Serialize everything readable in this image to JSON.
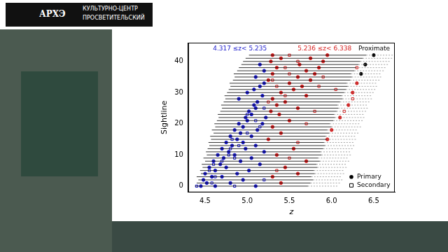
{
  "header": {
    "logo": "АРХЭ",
    "line1": "КУЛЬТУРНО-ЦЕНТР",
    "line2": "ПРОСВЕТИТЕЛЬСКИЙ"
  },
  "chart_data": {
    "type": "scatter",
    "x_label": "z",
    "y_label": "Sightline",
    "xlim": [
      4.3,
      6.75
    ],
    "xticks": [
      4.5,
      {
        "value": 5,
        "label": "5.0"
      },
      5.5,
      {
        "value": 6,
        "label": "6.0"
      },
      6.5
    ],
    "ylim": [
      -2,
      46
    ],
    "yticks": [
      0,
      10,
      20,
      30,
      40
    ],
    "grid": false,
    "legend": "lower right",
    "ranges": [
      {
        "text": "4.317 ≤z< 5.235",
        "min": 4.317,
        "max": 5.235,
        "color": "#1a1acc"
      },
      {
        "text": "5.236 ≤z< 6.338",
        "min": 5.236,
        "max": 6.338,
        "color": "#d62020"
      },
      {
        "text": "Proximate",
        "color": "#000000"
      }
    ],
    "sightlines": {
      "y": [
        0,
        1,
        2,
        3,
        4,
        5,
        6,
        7,
        8,
        9,
        10,
        11,
        12,
        13,
        14,
        15,
        16,
        17,
        18,
        19,
        20,
        21,
        22,
        23,
        24,
        25,
        26,
        27,
        28,
        29,
        30,
        31,
        32,
        33,
        34,
        35,
        36,
        37,
        38,
        39,
        40,
        41,
        42
      ],
      "z_start": [
        4.38,
        4.4,
        4.42,
        4.4,
        4.45,
        4.44,
        4.47,
        4.46,
        4.5,
        4.48,
        4.52,
        4.51,
        4.53,
        4.55,
        4.54,
        4.57,
        4.56,
        4.6,
        4.58,
        4.62,
        4.61,
        4.64,
        4.66,
        4.65,
        4.68,
        4.7,
        4.69,
        4.72,
        4.74,
        4.73,
        4.76,
        4.78,
        4.8,
        4.79,
        4.83,
        4.85,
        4.84,
        4.88,
        4.9,
        4.93,
        4.95,
        4.98,
        5.02
      ],
      "z_end": [
        5.72,
        5.75,
        5.78,
        5.76,
        5.8,
        5.79,
        5.83,
        5.82,
        5.86,
        5.84,
        5.88,
        5.87,
        5.9,
        5.92,
        5.91,
        5.94,
        5.93,
        5.97,
        5.95,
        6.0,
        5.98,
        6.02,
        6.04,
        6.03,
        6.06,
        6.08,
        6.07,
        6.1,
        6.13,
        6.12,
        6.15,
        6.17,
        6.19,
        6.18,
        6.22,
        6.24,
        6.23,
        6.27,
        6.29,
        6.32,
        6.34,
        6.37,
        6.41
      ],
      "z_proximate_end": [
        6.07,
        6.1,
        6.13,
        6.11,
        6.15,
        6.14,
        6.18,
        6.17,
        6.21,
        6.19,
        6.23,
        6.22,
        6.25,
        6.27,
        6.26,
        6.29,
        6.28,
        6.32,
        6.3,
        6.35,
        6.33,
        6.37,
        6.39,
        6.38,
        6.41,
        6.43,
        6.42,
        6.45,
        6.48,
        6.47,
        6.5,
        6.52,
        6.54,
        6.53,
        6.57,
        6.59,
        6.58,
        6.62,
        6.64,
        6.67,
        6.69,
        6.72,
        6.74
      ]
    },
    "series": [
      {
        "name": "Primary",
        "marker": "filled_circle",
        "points": [
          [
            4.45,
            0
          ],
          [
            4.62,
            0
          ],
          [
            5.1,
            0
          ],
          [
            4.52,
            1
          ],
          [
            4.8,
            1
          ],
          [
            5.4,
            1
          ],
          [
            4.48,
            2
          ],
          [
            4.95,
            2
          ],
          [
            4.58,
            3
          ],
          [
            4.7,
            3
          ],
          [
            5.3,
            3
          ],
          [
            4.5,
            4
          ],
          [
            4.88,
            4
          ],
          [
            5.6,
            4
          ],
          [
            4.62,
            5
          ],
          [
            5.02,
            5
          ],
          [
            4.55,
            6
          ],
          [
            4.75,
            6
          ],
          [
            5.45,
            6
          ],
          [
            4.68,
            7
          ],
          [
            5.15,
            7
          ],
          [
            4.6,
            8
          ],
          [
            4.92,
            8
          ],
          [
            5.7,
            8
          ],
          [
            4.72,
            9
          ],
          [
            5.05,
            9
          ],
          [
            4.65,
            10
          ],
          [
            4.85,
            10
          ],
          [
            5.35,
            10
          ],
          [
            4.78,
            11
          ],
          [
            5.2,
            11
          ],
          [
            4.7,
            12
          ],
          [
            4.98,
            12
          ],
          [
            5.55,
            12
          ],
          [
            4.82,
            13
          ],
          [
            5.1,
            13
          ],
          [
            4.75,
            14
          ],
          [
            4.95,
            14
          ],
          [
            4.88,
            15
          ],
          [
            5.25,
            15
          ],
          [
            5.95,
            15
          ],
          [
            4.8,
            16
          ],
          [
            5.05,
            16
          ],
          [
            4.92,
            17
          ],
          [
            5.4,
            17
          ],
          [
            4.85,
            18
          ],
          [
            5.12,
            18
          ],
          [
            6.0,
            18
          ],
          [
            4.95,
            19
          ],
          [
            5.3,
            19
          ],
          [
            4.9,
            20
          ],
          [
            5.18,
            20
          ],
          [
            5.0,
            21
          ],
          [
            5.5,
            21
          ],
          [
            4.98,
            22
          ],
          [
            5.22,
            22
          ],
          [
            6.1,
            22
          ],
          [
            5.05,
            23
          ],
          [
            5.38,
            23
          ],
          [
            5.02,
            24
          ],
          [
            5.28,
            24
          ],
          [
            5.1,
            25
          ],
          [
            5.6,
            25
          ],
          [
            5.08,
            26
          ],
          [
            5.35,
            26
          ],
          [
            6.2,
            26
          ],
          [
            5.12,
            27
          ],
          [
            5.45,
            27
          ],
          [
            4.9,
            28
          ],
          [
            5.3,
            28
          ],
          [
            5.18,
            29
          ],
          [
            5.7,
            29
          ],
          [
            5.0,
            30
          ],
          [
            5.4,
            30
          ],
          [
            6.25,
            30
          ],
          [
            5.08,
            31
          ],
          [
            5.55,
            31
          ],
          [
            5.15,
            32
          ],
          [
            5.65,
            32
          ],
          [
            5.2,
            33
          ],
          [
            5.5,
            33
          ],
          [
            6.3,
            33
          ],
          [
            5.25,
            34
          ],
          [
            5.75,
            34
          ],
          [
            5.1,
            35
          ],
          [
            5.6,
            35
          ],
          [
            5.3,
            36
          ],
          [
            5.8,
            36
          ],
          [
            6.35,
            36
          ],
          [
            5.2,
            37
          ],
          [
            5.7,
            37
          ],
          [
            5.35,
            38
          ],
          [
            5.85,
            38
          ],
          [
            5.15,
            39
          ],
          [
            5.62,
            39
          ],
          [
            6.4,
            39
          ],
          [
            5.28,
            40
          ],
          [
            5.9,
            40
          ],
          [
            5.4,
            41
          ],
          [
            5.75,
            41
          ],
          [
            5.3,
            42
          ],
          [
            5.95,
            42
          ],
          [
            6.5,
            42
          ]
        ]
      },
      {
        "name": "Secondary",
        "marker": "open_square",
        "points": [
          [
            4.4,
            0
          ],
          [
            4.85,
            0
          ],
          [
            4.58,
            1
          ],
          [
            5.2,
            2
          ],
          [
            4.62,
            3
          ],
          [
            4.55,
            5
          ],
          [
            5.35,
            5
          ],
          [
            4.6,
            7
          ],
          [
            4.85,
            9
          ],
          [
            5.5,
            9
          ],
          [
            4.78,
            10
          ],
          [
            4.9,
            13
          ],
          [
            5.6,
            14
          ],
          [
            4.82,
            15
          ],
          [
            5.0,
            17
          ],
          [
            5.15,
            19
          ],
          [
            5.7,
            20
          ],
          [
            5.1,
            21
          ],
          [
            5.0,
            23
          ],
          [
            5.8,
            24
          ],
          [
            5.2,
            25
          ],
          [
            5.25,
            27
          ],
          [
            5.45,
            29
          ],
          [
            6.05,
            31
          ],
          [
            5.35,
            32
          ],
          [
            5.3,
            34
          ],
          [
            5.5,
            36
          ],
          [
            5.45,
            38
          ],
          [
            6.3,
            38
          ],
          [
            5.6,
            40
          ],
          [
            5.5,
            42
          ],
          [
            6.25,
            28
          ],
          [
            6.15,
            24
          ],
          [
            4.7,
            8
          ],
          [
            4.8,
            12
          ],
          [
            5.9,
            35
          ],
          [
            5.85,
            32
          ]
        ]
      }
    ]
  }
}
